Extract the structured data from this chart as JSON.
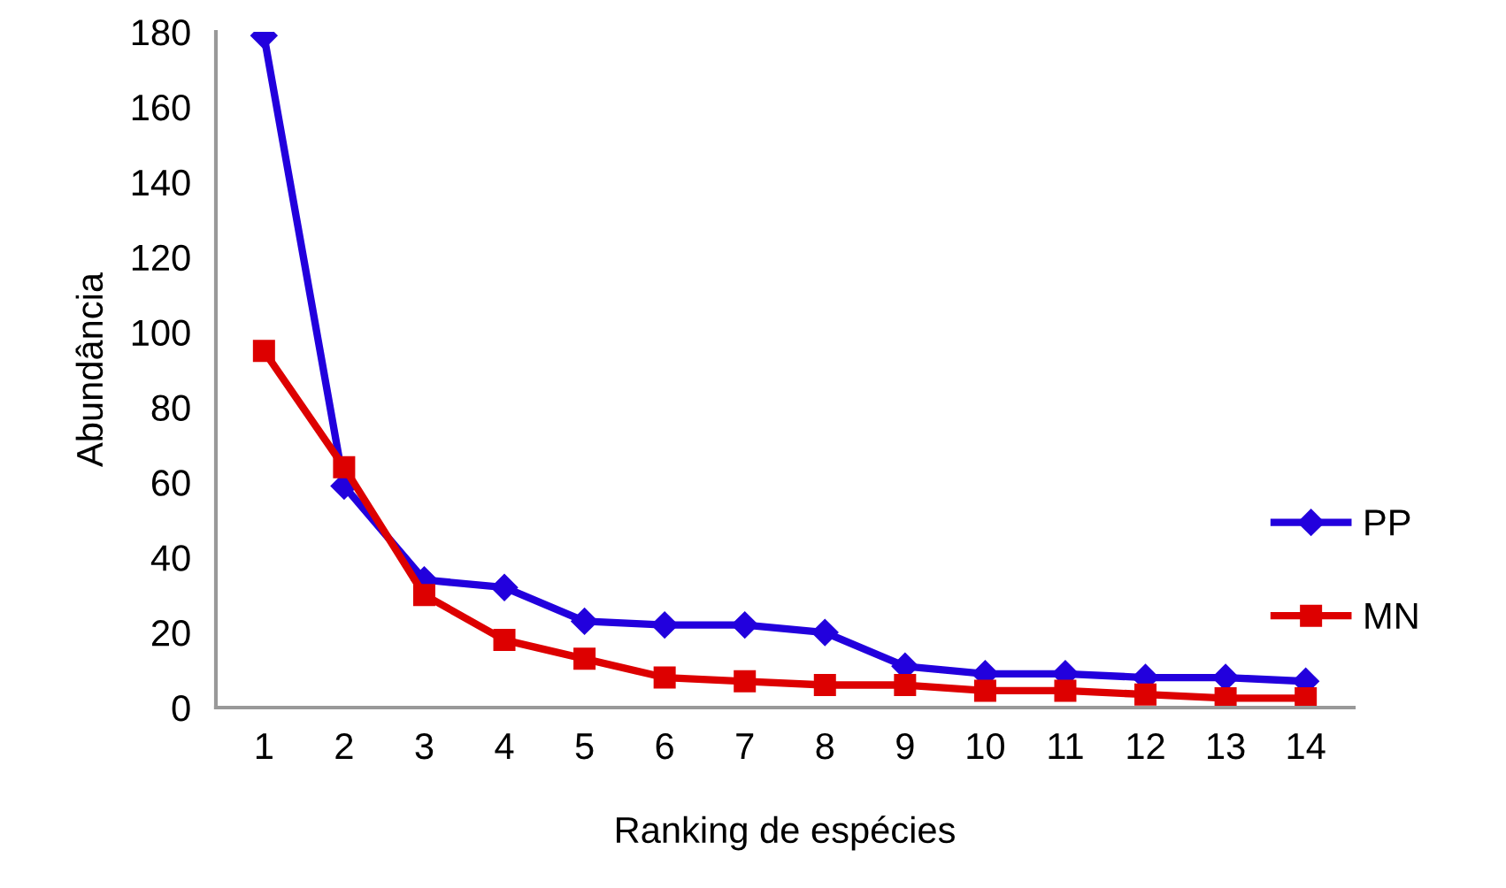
{
  "chart_data": {
    "type": "line",
    "xlabel": "Ranking de espécies",
    "ylabel": "Abundância",
    "categories": [
      "1",
      "2",
      "3",
      "4",
      "5",
      "6",
      "7",
      "8",
      "9",
      "10",
      "11",
      "12",
      "13",
      "14"
    ],
    "series": [
      {
        "name": "PP",
        "color": "#2200dd",
        "marker": "diamond",
        "values": [
          179,
          59,
          34,
          32,
          23,
          22,
          22,
          20,
          11,
          9,
          9,
          8,
          8,
          7
        ]
      },
      {
        "name": "MN",
        "color": "#dd0000",
        "marker": "square",
        "values": [
          95,
          64,
          30,
          18,
          13,
          8,
          7,
          6,
          6,
          4.5,
          4.5,
          3.5,
          2.5,
          2.5
        ]
      }
    ],
    "ylim": [
      0,
      180
    ],
    "yticks": [
      0,
      20,
      40,
      60,
      80,
      100,
      120,
      140,
      160,
      180
    ],
    "grid": false,
    "legend": "right",
    "line_style": "solid"
  }
}
